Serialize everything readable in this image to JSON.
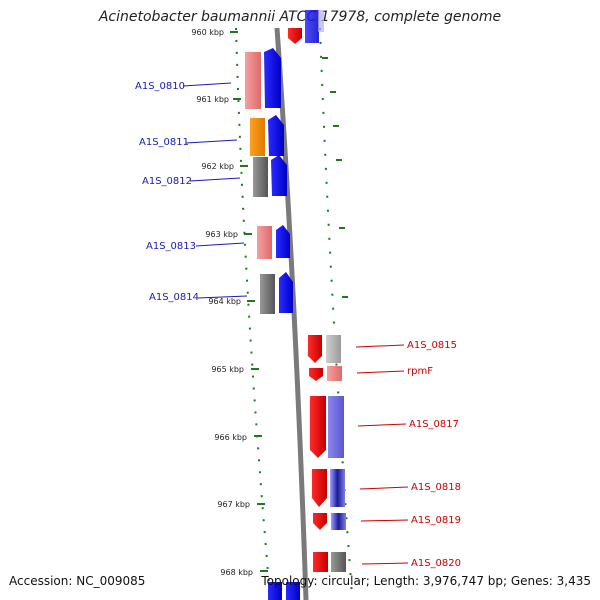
{
  "title": "Acinetobacter baumannii ATCC 17978, complete genome",
  "ticks": [
    "960 kbp",
    "961 kbp",
    "962 kbp",
    "963 kbp",
    "964 kbp",
    "965 kbp",
    "966 kbp",
    "967 kbp",
    "968 kbp"
  ],
  "genes_left": [
    {
      "name": "A1S_0810"
    },
    {
      "name": "A1S_0811"
    },
    {
      "name": "A1S_0812"
    },
    {
      "name": "A1S_0813"
    },
    {
      "name": "A1S_0814"
    }
  ],
  "genes_right": [
    {
      "name": "A1S_0815"
    },
    {
      "name": "rpmF"
    },
    {
      "name": "A1S_0817"
    },
    {
      "name": "A1S_0818"
    },
    {
      "name": "A1S_0819"
    },
    {
      "name": "A1S_0820"
    }
  ],
  "colors": {
    "label_left": "#1a1ab8",
    "label_right": "#cc0000",
    "tick": "#1e7a1e",
    "backbone": "#777777"
  },
  "footer": {
    "accession": "Accession: NC_009085",
    "topology": "Topology: circular; Length: 3,976,747 bp; Genes: 3,435"
  }
}
